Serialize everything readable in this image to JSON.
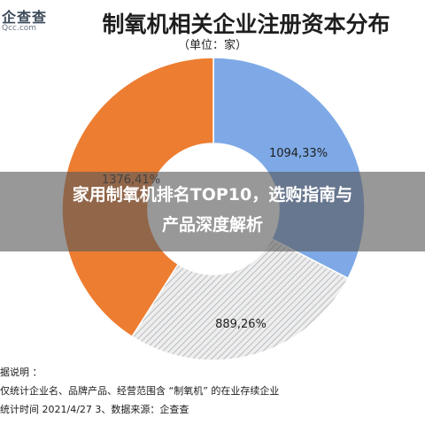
{
  "logo": {
    "main": "企查查",
    "sub": "Qcc.com"
  },
  "title": "制氧机相关企业注册资本分布",
  "unit": "（单位：家）",
  "banner": {
    "line1": "家用制氧机排名TOP10，选购指南与",
    "line2": "产品深度解析"
  },
  "notes": {
    "heading": "据说明 ：",
    "line1": "仅统计企业名、品牌产品、经营范围含 “制氧机” 的在业存续企业",
    "line2": "统计时间  2021/4/27     3、数据来源：企查查"
  },
  "colors": {
    "blue": "#7ea9e6",
    "blue_edge": "#4a78c4",
    "orange": "#ed7d31",
    "hatch": "#b8bcc0"
  },
  "chart_data": {
    "type": "pie",
    "donut": true,
    "title": "制氧机相关企业注册资本分布",
    "unit": "（单位：家）",
    "slices": [
      {
        "value": 1094,
        "percent": 33,
        "label": "1094,33%",
        "color": "#7ea9e6"
      },
      {
        "value": 889,
        "percent": 26,
        "label": "889,26%",
        "color": "#c9ccd0",
        "pattern": "hatch"
      },
      {
        "value": 1376,
        "percent": 41,
        "label": "1376,41%",
        "color": "#ed7d31"
      }
    ]
  }
}
